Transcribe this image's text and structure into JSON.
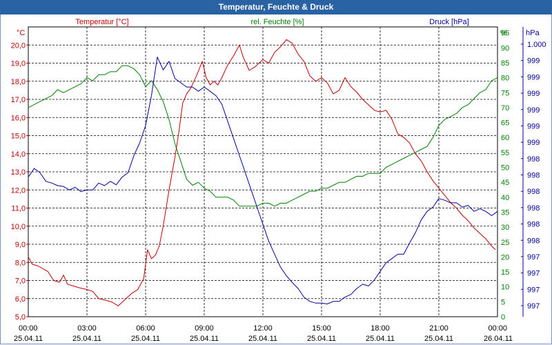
{
  "title": "Temperatur, Feuchte & Druck",
  "colors": {
    "temperature": "#c00000",
    "humidity": "#008000",
    "pressure": "#000099",
    "titlebar": "#2a63a4"
  },
  "chart_data": {
    "type": "line",
    "grid": true,
    "x_ticks": [
      {
        "time": "00:00",
        "date": "25.04.11"
      },
      {
        "time": "03:00",
        "date": "25.04.11"
      },
      {
        "time": "06:00",
        "date": "25.04.11"
      },
      {
        "time": "09:00",
        "date": "25.04.11"
      },
      {
        "time": "12:00",
        "date": "25.04.11"
      },
      {
        "time": "15:00",
        "date": "25.04.11"
      },
      {
        "time": "18:00",
        "date": "25.04.11"
      },
      {
        "time": "21:00",
        "date": "25.04.11"
      },
      {
        "time": "00:00",
        "date": "26.04.11"
      }
    ],
    "x_range_hours": [
      0,
      24
    ],
    "axes": {
      "temperature": {
        "series_label": "Temperatur [°C]",
        "unit": "°C",
        "range": [
          5.0,
          21.0
        ],
        "ticks": [
          "5,0",
          "6,0",
          "7,0",
          "8,0",
          "9,0",
          "10,0",
          "11,0",
          "12,0",
          "13,0",
          "14,0",
          "15,0",
          "16,0",
          "17,0",
          "18,0",
          "19,0",
          "20,0"
        ]
      },
      "humidity": {
        "series_label": "rel. Feuchte [%]",
        "unit": "%",
        "range": [
          0,
          97
        ],
        "ticks": [
          "0",
          "5",
          "10",
          "15",
          "20",
          "25",
          "30",
          "35",
          "40",
          "45",
          "50",
          "55",
          "60",
          "65",
          "70",
          "75",
          "80",
          "85",
          "90",
          "95"
        ]
      },
      "pressure": {
        "series_label": "Druck [hPa]",
        "unit": "hPa",
        "ticks": [
          "997",
          "997",
          "997",
          "997",
          "998",
          "998",
          "998",
          "998",
          "998",
          "998",
          "999",
          "999",
          "999",
          "999",
          "999",
          "999",
          "1.000"
        ]
      }
    },
    "series": [
      {
        "name": "Temperatur [°C]",
        "axis": "temperature",
        "color": "#c00000",
        "x": [
          0,
          0.2,
          0.5,
          1.0,
          1.3,
          1.6,
          1.8,
          2.0,
          2.3,
          2.6,
          3.0,
          3.3,
          3.6,
          4.0,
          4.3,
          4.6,
          5.0,
          5.3,
          5.6,
          5.9,
          6.1,
          6.3,
          6.5,
          6.7,
          6.9,
          7.2,
          7.5,
          7.7,
          7.9,
          8.1,
          8.3,
          8.6,
          8.9,
          9.1,
          9.3,
          9.5,
          9.7,
          9.9,
          10.2,
          10.5,
          10.8,
          11.0,
          11.3,
          11.6,
          12.0,
          12.3,
          12.6,
          12.9,
          13.2,
          13.5,
          13.8,
          14.1,
          14.4,
          14.7,
          15.0,
          15.3,
          15.6,
          15.9,
          16.2,
          16.5,
          16.8,
          17.1,
          17.4,
          17.7,
          18.0,
          18.3,
          18.6,
          18.9,
          19.2,
          19.5,
          19.8,
          20.1,
          20.4,
          20.7,
          21.0,
          21.3,
          21.6,
          21.9,
          22.2,
          22.5,
          22.8,
          23.1,
          23.4,
          23.7,
          23.9
        ],
        "values": [
          8.3,
          7.9,
          7.8,
          7.5,
          7.0,
          6.9,
          7.3,
          6.8,
          6.7,
          6.6,
          6.5,
          6.4,
          6.0,
          5.9,
          5.8,
          5.6,
          6.0,
          6.3,
          6.5,
          7.1,
          8.7,
          8.2,
          8.4,
          8.9,
          10.0,
          12.0,
          13.8,
          15.2,
          16.8,
          17.3,
          17.6,
          18.3,
          19.1,
          18.2,
          17.8,
          18.0,
          17.8,
          18.2,
          18.9,
          19.4,
          20.0,
          19.3,
          18.6,
          18.8,
          19.2,
          19.0,
          19.6,
          19.9,
          20.3,
          20.1,
          19.5,
          19.1,
          18.3,
          18.0,
          18.2,
          17.9,
          17.3,
          17.5,
          18.2,
          17.7,
          17.4,
          17.0,
          16.7,
          16.4,
          16.3,
          16.4,
          15.9,
          15.1,
          14.9,
          14.6,
          14.0,
          13.6,
          13.0,
          12.5,
          12.1,
          11.7,
          11.3,
          11.0,
          10.6,
          10.3,
          9.9,
          9.6,
          9.3,
          8.9,
          8.7
        ]
      },
      {
        "name": "rel. Feuchte [%]",
        "axis": "humidity",
        "color": "#008000",
        "x": [
          0,
          0.3,
          0.6,
          0.9,
          1.2,
          1.5,
          1.8,
          2.1,
          2.4,
          2.7,
          3.0,
          3.3,
          3.6,
          3.9,
          4.2,
          4.5,
          4.8,
          5.1,
          5.4,
          5.7,
          6.0,
          6.3,
          6.6,
          6.9,
          7.2,
          7.5,
          7.8,
          8.1,
          8.4,
          8.7,
          9.0,
          9.3,
          9.6,
          9.9,
          10.2,
          10.5,
          10.8,
          11.1,
          11.4,
          11.7,
          12.0,
          12.3,
          12.6,
          12.9,
          13.2,
          13.5,
          13.8,
          14.1,
          14.4,
          14.7,
          15.0,
          15.3,
          15.6,
          15.9,
          16.2,
          16.5,
          16.8,
          17.1,
          17.4,
          17.7,
          18.0,
          18.3,
          18.6,
          18.9,
          19.2,
          19.5,
          19.8,
          20.1,
          20.4,
          20.7,
          21.0,
          21.3,
          21.6,
          21.9,
          22.2,
          22.5,
          22.8,
          23.1,
          23.4,
          23.7,
          24.0
        ],
        "values": [
          70,
          71,
          72,
          73,
          74,
          76,
          75,
          76,
          77,
          78,
          80,
          79,
          81,
          81,
          82,
          82,
          84,
          84,
          83,
          81,
          77,
          79,
          76,
          72,
          66,
          58,
          52,
          46,
          44,
          45,
          43,
          42,
          40,
          40,
          40,
          39,
          37,
          37,
          37,
          37,
          38,
          38,
          37,
          38,
          38,
          39,
          40,
          41,
          42,
          42,
          43,
          43,
          44,
          45,
          45,
          46,
          47,
          47,
          48,
          48,
          48,
          50,
          51,
          52,
          53,
          54,
          55,
          56,
          57,
          60,
          64,
          66,
          67,
          68,
          70,
          71,
          73,
          75,
          76,
          79,
          80
        ]
      },
      {
        "name": "Druck [hPa]",
        "axis": "pressure",
        "color": "#000099",
        "x": [
          0,
          0.3,
          0.6,
          0.9,
          1.2,
          1.5,
          1.8,
          2.1,
          2.4,
          2.7,
          3.0,
          3.3,
          3.6,
          3.9,
          4.2,
          4.5,
          4.8,
          5.1,
          5.4,
          5.7,
          6.0,
          6.3,
          6.6,
          6.9,
          7.2,
          7.5,
          7.8,
          8.1,
          8.4,
          8.7,
          9.0,
          9.3,
          9.6,
          9.9,
          10.2,
          10.5,
          10.8,
          11.1,
          11.4,
          11.7,
          12.0,
          12.3,
          12.6,
          12.9,
          13.2,
          13.5,
          13.8,
          14.1,
          14.4,
          14.7,
          15.0,
          15.3,
          15.6,
          15.9,
          16.2,
          16.5,
          16.8,
          17.1,
          17.4,
          17.7,
          18.0,
          18.3,
          18.6,
          18.9,
          19.2,
          19.5,
          19.8,
          20.1,
          20.4,
          20.7,
          21.0,
          21.3,
          21.6,
          21.9,
          22.2,
          22.5,
          22.8,
          23.1,
          23.4,
          23.7,
          24.0
        ],
        "values": [
          998.45,
          998.55,
          998.5,
          998.4,
          998.38,
          998.35,
          998.34,
          998.3,
          998.33,
          998.28,
          998.3,
          998.3,
          998.38,
          998.35,
          998.4,
          998.36,
          998.45,
          998.5,
          998.7,
          998.85,
          999.05,
          999.4,
          999.85,
          999.7,
          999.8,
          999.6,
          999.55,
          999.5,
          999.5,
          999.45,
          999.5,
          999.45,
          999.4,
          999.3,
          999.1,
          998.9,
          998.7,
          998.5,
          998.3,
          998.1,
          997.9,
          997.7,
          997.55,
          997.4,
          997.3,
          997.22,
          997.15,
          997.05,
          997.0,
          996.98,
          996.98,
          996.97,
          997.0,
          997.0,
          997.05,
          997.08,
          997.15,
          997.2,
          997.18,
          997.25,
          997.35,
          997.45,
          997.5,
          997.55,
          997.55,
          997.68,
          997.8,
          997.95,
          998.05,
          998.1,
          998.2,
          998.18,
          998.15,
          998.15,
          998.1,
          998.12,
          998.05,
          998.08,
          998.05,
          998.0,
          998.05
        ]
      }
    ]
  }
}
